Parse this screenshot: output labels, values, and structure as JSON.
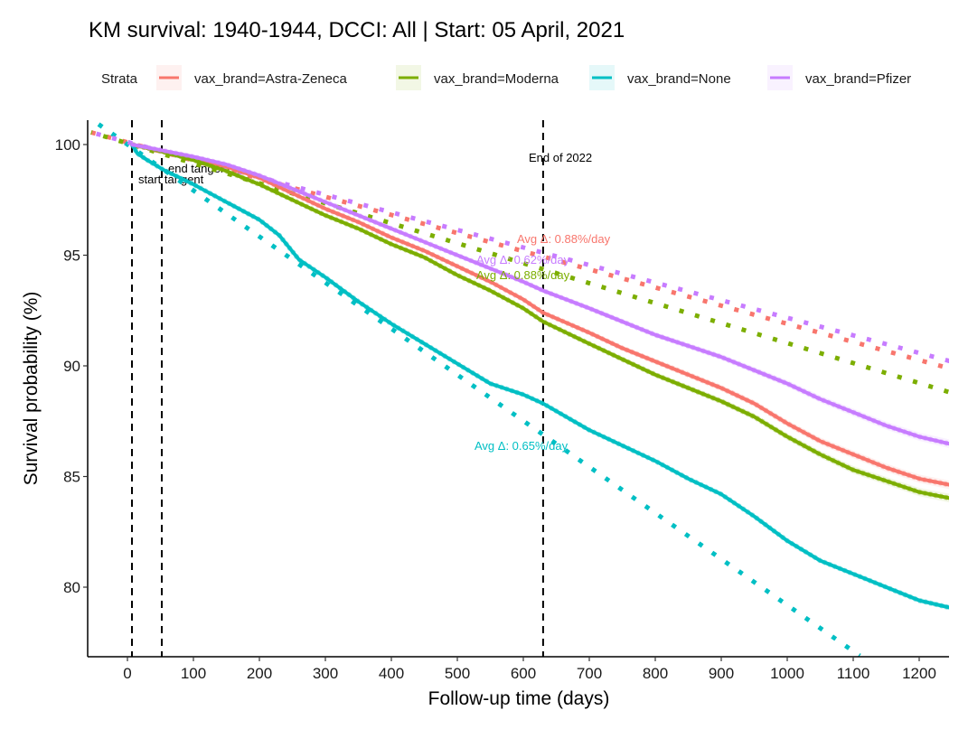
{
  "chart_data": {
    "type": "line",
    "title": "KM survival: 1940-1944, DCCI: All | Start: 05 April, 2021",
    "xlabel": "Follow-up time (days)",
    "ylabel": "Survival probability (%)",
    "xlim": [
      -60,
      1305
    ],
    "ylim": [
      76.9,
      101.1
    ],
    "x_ticks": [
      0,
      100,
      200,
      300,
      400,
      500,
      600,
      700,
      800,
      900,
      1000,
      1100,
      1200
    ],
    "y_ticks": [
      80,
      85,
      90,
      95,
      100
    ],
    "grid": false,
    "legend": {
      "title": "Strata",
      "position": "top",
      "entries": [
        "vax_brand=Astra-Zeneca",
        "vax_brand=Moderna",
        "vax_brand=None",
        "vax_brand=Pfizer"
      ]
    },
    "series": [
      {
        "name": "vax_brand=Astra-Zeneca",
        "color": "#F8766D",
        "ci_band": true,
        "x": [
          7,
          50,
          100,
          150,
          200,
          250,
          300,
          350,
          400,
          450,
          500,
          550,
          600,
          630,
          700,
          750,
          800,
          850,
          900,
          950,
          1000,
          1050,
          1100,
          1150,
          1200,
          1250,
          1280
        ],
        "y": [
          100,
          99.7,
          99.4,
          99.0,
          98.5,
          97.8,
          97.1,
          96.5,
          95.8,
          95.2,
          94.5,
          93.8,
          93.0,
          92.4,
          91.5,
          90.8,
          90.2,
          89.6,
          89.0,
          88.3,
          87.4,
          86.6,
          86.0,
          85.4,
          84.9,
          84.6,
          84.5
        ],
        "tangent": {
          "x": [
            -55,
            1305
          ],
          "y": [
            100.55,
            89.4
          ]
        }
      },
      {
        "name": "vax_brand=Moderna",
        "color": "#7CAE00",
        "ci_band": true,
        "x": [
          7,
          50,
          100,
          150,
          200,
          250,
          300,
          350,
          400,
          450,
          500,
          550,
          600,
          630,
          700,
          750,
          800,
          850,
          900,
          950,
          1000,
          1050,
          1100,
          1150,
          1200,
          1250,
          1280
        ],
        "y": [
          100,
          99.7,
          99.3,
          98.8,
          98.2,
          97.5,
          96.8,
          96.2,
          95.5,
          94.9,
          94.1,
          93.4,
          92.6,
          92.0,
          91.0,
          90.3,
          89.6,
          89.0,
          88.4,
          87.7,
          86.8,
          86.0,
          85.3,
          84.8,
          84.3,
          84.0,
          83.9
        ],
        "tangent": {
          "x": [
            -55,
            1280
          ],
          "y": [
            100.55,
            88.5
          ]
        }
      },
      {
        "name": "vax_brand=None",
        "color": "#00BFC4",
        "ci_band": true,
        "x": [
          7,
          15,
          30,
          55,
          100,
          150,
          200,
          230,
          260,
          300,
          350,
          400,
          450,
          500,
          550,
          600,
          630,
          700,
          750,
          800,
          850,
          900,
          950,
          1000,
          1050,
          1100,
          1150,
          1200,
          1250,
          1280
        ],
        "y": [
          100,
          99.6,
          99.3,
          98.85,
          98.2,
          97.4,
          96.6,
          95.9,
          94.8,
          94.0,
          92.9,
          91.9,
          91.0,
          90.1,
          89.2,
          88.7,
          88.3,
          87.1,
          86.4,
          85.7,
          84.9,
          84.2,
          83.2,
          82.1,
          81.2,
          80.6,
          80.0,
          79.4,
          79.05,
          79.0
        ],
        "tangent": {
          "x": [
            -55,
            1110
          ],
          "y": [
            101.15,
            76.9
          ]
        }
      },
      {
        "name": "vax_brand=Pfizer",
        "color": "#C77CFF",
        "ci_band": true,
        "x": [
          7,
          50,
          100,
          150,
          200,
          250,
          300,
          350,
          400,
          450,
          500,
          550,
          600,
          630,
          700,
          750,
          800,
          850,
          900,
          950,
          1000,
          1050,
          1100,
          1150,
          1200,
          1250,
          1280
        ],
        "y": [
          100,
          99.75,
          99.45,
          99.1,
          98.6,
          98.0,
          97.4,
          96.8,
          96.2,
          95.6,
          95.0,
          94.4,
          93.8,
          93.4,
          92.6,
          92.0,
          91.4,
          90.9,
          90.4,
          89.8,
          89.2,
          88.5,
          87.9,
          87.3,
          86.8,
          86.45,
          86.4
        ],
        "tangent": {
          "x": [
            -55,
            1305
          ],
          "y": [
            100.55,
            89.75
          ]
        }
      }
    ],
    "vlines": [
      {
        "x": 7,
        "label": "start tangent"
      },
      {
        "x": 55,
        "label": "end tangent"
      },
      {
        "x": 630,
        "label": "End of 2022"
      }
    ],
    "annotations": [
      {
        "text": "Avg Δ: 0.88%/day",
        "series": "vax_brand=Astra-Zeneca",
        "x": 630,
        "y": 95.7
      },
      {
        "text": "Avg Δ: 0.62%/day",
        "series": "vax_brand=Pfizer",
        "x": 560,
        "y": 94.8
      },
      {
        "text": "Avg Δ: 0.88%/day",
        "series": "vax_brand=Moderna",
        "x": 560,
        "y": 94.1
      },
      {
        "text": "Avg Δ: 0.65%/day",
        "series": "vax_brand=None",
        "x": 550,
        "y": 84.4
      }
    ]
  }
}
